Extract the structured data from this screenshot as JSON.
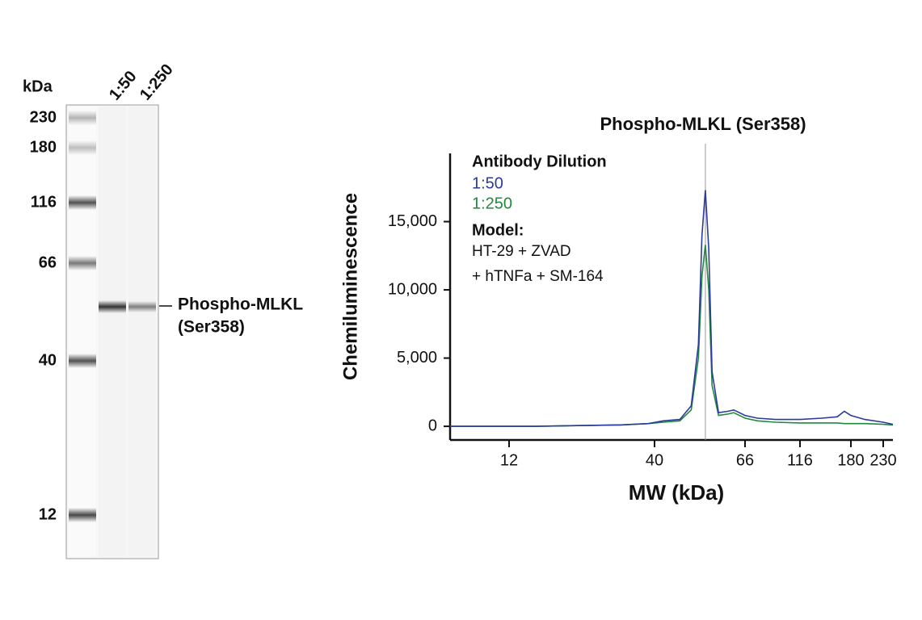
{
  "blot": {
    "unit_label": "kDa",
    "lanes": [
      "1:50",
      "1:250"
    ],
    "markers": [
      "230",
      "180",
      "116",
      "66",
      "40",
      "12"
    ],
    "band_label": [
      "Phospho-MLKL",
      "(Ser358)"
    ]
  },
  "chart_data": {
    "type": "line",
    "title": "Phospho-MLKL (Ser358)",
    "xlabel": "MW (kDa)",
    "ylabel": "Chemiluminescence",
    "legend_title": "Antibody Dilution",
    "annotation": {
      "title": "Model:",
      "lines": [
        "HT-29 + ZVAD",
        "+ hTNFa + SM-164"
      ]
    },
    "x": [
      7.4,
      10,
      15,
      20,
      30,
      38,
      42,
      46,
      49,
      51,
      52,
      53,
      54,
      55,
      57,
      60,
      62,
      66,
      75,
      90,
      116,
      140,
      160,
      170,
      180,
      200,
      230,
      248
    ],
    "series": [
      {
        "name": "1:50",
        "color": "#2b3a9c",
        "values": [
          0,
          0,
          0,
          50,
          100,
          200,
          400,
          500,
          1500,
          6000,
          14000,
          17300,
          13000,
          4000,
          1000,
          1100,
          1200,
          800,
          600,
          500,
          500,
          600,
          700,
          1100,
          800,
          500,
          300,
          150
        ]
      },
      {
        "name": "1:250",
        "color": "#1f8a3c",
        "values": [
          0,
          0,
          0,
          50,
          100,
          200,
          300,
          400,
          1200,
          5000,
          11000,
          13300,
          10000,
          3000,
          800,
          900,
          1000,
          600,
          400,
          300,
          250,
          250,
          250,
          200,
          200,
          200,
          150,
          100
        ]
      }
    ],
    "marker_line": 53,
    "xlim": [
      7.4,
      248
    ],
    "xticks": [
      12,
      40,
      66,
      116,
      180,
      230
    ],
    "ylim": [
      -1000,
      20000
    ],
    "yticks": [
      0,
      {
        "value": 5000,
        "label": "5,000"
      },
      {
        "value": 10000,
        "label": "10,000"
      },
      {
        "value": 15000,
        "label": "15,000"
      }
    ]
  }
}
